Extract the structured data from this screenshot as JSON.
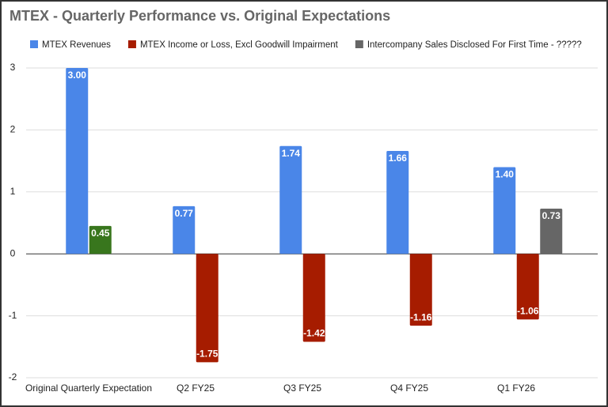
{
  "chart_data": {
    "type": "bar",
    "title": "MTEX - Quarterly Performance vs. Original Expectations",
    "categories": [
      "Original Quarterly Expectation",
      "Q2 FY25",
      "Q3 FY25",
      "Q4 FY25",
      "Q1 FY26"
    ],
    "series": [
      {
        "name": "MTEX Revenues",
        "color": "#4a86e8",
        "values": [
          3.0,
          0.77,
          1.74,
          1.66,
          1.4
        ],
        "value_labels": [
          "3.00",
          "0.77",
          "1.74",
          "1.66",
          "1.40"
        ]
      },
      {
        "name": "MTEX Income or Loss, Excl Goodwill Impairment",
        "color": "#a61c00",
        "colors": [
          "#38761d",
          "#a61c00",
          "#a61c00",
          "#a61c00",
          "#a61c00"
        ],
        "values": [
          0.45,
          -1.75,
          -1.42,
          -1.16,
          -1.06
        ],
        "value_labels": [
          "0.45",
          "-1.75",
          "-1.42",
          "-1.16",
          "-1.06"
        ]
      },
      {
        "name": "Intercompany Sales Disclosed For First Time - ?????",
        "color": "#666666",
        "values": [
          null,
          null,
          null,
          null,
          0.73
        ],
        "value_labels": [
          null,
          null,
          null,
          null,
          "0.73"
        ]
      }
    ],
    "ylim": [
      -2,
      3
    ],
    "yticks": [
      -2,
      -1,
      0,
      1,
      2,
      3
    ],
    "grid": true
  }
}
